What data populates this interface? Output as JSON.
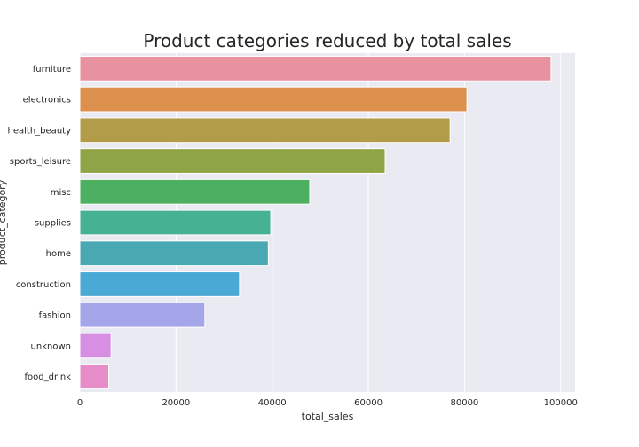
{
  "chart_data": {
    "type": "bar",
    "orientation": "horizontal",
    "title": "Product categories reduced by total sales",
    "xlabel": "total_sales",
    "ylabel": "product_category",
    "categories": [
      "furniture",
      "electronics",
      "health_beauty",
      "sports_leisure",
      "misc",
      "supplies",
      "home",
      "construction",
      "fashion",
      "unknown",
      "food_drink"
    ],
    "values": [
      98000,
      80500,
      77000,
      63500,
      47800,
      39700,
      39200,
      33200,
      26000,
      6500,
      6000
    ],
    "xlim": [
      0,
      103000
    ],
    "xticks": [
      0,
      20000,
      40000,
      60000,
      80000,
      100000
    ],
    "xtick_labels": [
      "0",
      "20000",
      "40000",
      "60000",
      "80000",
      "100000"
    ],
    "grid": true,
    "colors": [
      "#e8929f",
      "#dd8f4d",
      "#b39c49",
      "#8fa545",
      "#4cb060",
      "#47b293",
      "#49a8b2",
      "#4ba9d6",
      "#a5a6ea",
      "#d78fe4",
      "#e68cc8"
    ],
    "background": "#eaeaf2"
  }
}
